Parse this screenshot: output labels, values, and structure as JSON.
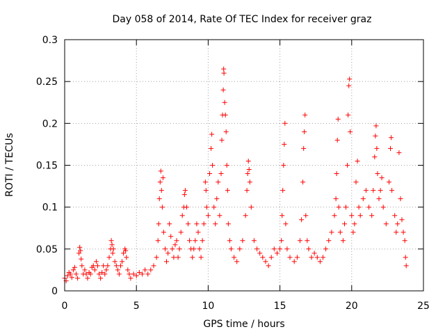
{
  "chart_data": {
    "type": "scatter",
    "title": "Day 058 of 2014, Rate Of TEC Index for receiver graz",
    "xlabel": "GPS time / hours",
    "ylabel": "ROTI / TECUs",
    "xlim": [
      0,
      25
    ],
    "ylim": [
      0,
      0.3
    ],
    "x_ticks": [
      0,
      5,
      10,
      15,
      20,
      25
    ],
    "x_tick_labels": [
      "0",
      "5",
      "10",
      "15",
      "20",
      "25"
    ],
    "y_ticks": [
      0,
      0.05,
      0.1,
      0.15,
      0.2,
      0.25,
      0.3
    ],
    "y_tick_labels": [
      "0",
      "0.05",
      "0.1",
      "0.15",
      "0.2",
      "0.25",
      "0.3"
    ],
    "grid": true,
    "marker": "+",
    "color": "#ff0000",
    "series": [
      {
        "name": "ROTI",
        "points": [
          [
            0.0,
            0.015
          ],
          [
            0.1,
            0.012
          ],
          [
            0.2,
            0.018
          ],
          [
            0.3,
            0.022
          ],
          [
            0.4,
            0.02
          ],
          [
            0.5,
            0.016
          ],
          [
            0.6,
            0.025
          ],
          [
            0.7,
            0.028
          ],
          [
            0.8,
            0.02
          ],
          [
            0.9,
            0.015
          ],
          [
            1.0,
            0.045
          ],
          [
            1.05,
            0.052
          ],
          [
            1.1,
            0.048
          ],
          [
            1.15,
            0.038
          ],
          [
            1.2,
            0.03
          ],
          [
            1.3,
            0.02
          ],
          [
            1.4,
            0.025
          ],
          [
            1.5,
            0.02
          ],
          [
            1.6,
            0.015
          ],
          [
            1.7,
            0.022
          ],
          [
            1.8,
            0.02
          ],
          [
            1.9,
            0.028
          ],
          [
            2.0,
            0.03
          ],
          [
            2.1,
            0.025
          ],
          [
            2.2,
            0.035
          ],
          [
            2.3,
            0.03
          ],
          [
            2.4,
            0.02
          ],
          [
            2.5,
            0.015
          ],
          [
            2.6,
            0.022
          ],
          [
            2.7,
            0.03
          ],
          [
            2.8,
            0.02
          ],
          [
            2.9,
            0.025
          ],
          [
            3.0,
            0.03
          ],
          [
            3.1,
            0.04
          ],
          [
            3.2,
            0.05
          ],
          [
            3.25,
            0.06
          ],
          [
            3.3,
            0.055
          ],
          [
            3.35,
            0.045
          ],
          [
            3.4,
            0.05
          ],
          [
            3.5,
            0.035
          ],
          [
            3.6,
            0.03
          ],
          [
            3.7,
            0.025
          ],
          [
            3.8,
            0.02
          ],
          [
            3.9,
            0.03
          ],
          [
            4.0,
            0.035
          ],
          [
            4.1,
            0.045
          ],
          [
            4.2,
            0.05
          ],
          [
            4.25,
            0.048
          ],
          [
            4.3,
            0.04
          ],
          [
            4.4,
            0.025
          ],
          [
            4.5,
            0.02
          ],
          [
            4.6,
            0.015
          ],
          [
            4.8,
            0.02
          ],
          [
            5.0,
            0.018
          ],
          [
            5.2,
            0.022
          ],
          [
            5.4,
            0.02
          ],
          [
            5.6,
            0.025
          ],
          [
            5.8,
            0.02
          ],
          [
            6.0,
            0.025
          ],
          [
            6.2,
            0.03
          ],
          [
            6.4,
            0.04
          ],
          [
            6.5,
            0.06
          ],
          [
            6.55,
            0.08
          ],
          [
            6.6,
            0.11
          ],
          [
            6.65,
            0.13
          ],
          [
            6.7,
            0.143
          ],
          [
            6.75,
            0.12
          ],
          [
            6.8,
            0.1
          ],
          [
            6.85,
            0.135
          ],
          [
            6.9,
            0.07
          ],
          [
            7.0,
            0.05
          ],
          [
            7.1,
            0.035
          ],
          [
            7.2,
            0.045
          ],
          [
            7.3,
            0.08
          ],
          [
            7.4,
            0.065
          ],
          [
            7.5,
            0.05
          ],
          [
            7.6,
            0.04
          ],
          [
            7.7,
            0.055
          ],
          [
            7.8,
            0.06
          ],
          [
            7.9,
            0.04
          ],
          [
            8.0,
            0.05
          ],
          [
            8.1,
            0.07
          ],
          [
            8.2,
            0.09
          ],
          [
            8.3,
            0.1
          ],
          [
            8.35,
            0.115
          ],
          [
            8.4,
            0.12
          ],
          [
            8.5,
            0.1
          ],
          [
            8.6,
            0.08
          ],
          [
            8.7,
            0.06
          ],
          [
            8.8,
            0.05
          ],
          [
            8.9,
            0.04
          ],
          [
            9.0,
            0.05
          ],
          [
            9.1,
            0.06
          ],
          [
            9.2,
            0.08
          ],
          [
            9.3,
            0.07
          ],
          [
            9.4,
            0.05
          ],
          [
            9.5,
            0.04
          ],
          [
            9.6,
            0.06
          ],
          [
            9.7,
            0.08
          ],
          [
            9.8,
            0.13
          ],
          [
            9.85,
            0.12
          ],
          [
            9.9,
            0.1
          ],
          [
            10.0,
            0.09
          ],
          [
            10.1,
            0.14
          ],
          [
            10.2,
            0.17
          ],
          [
            10.25,
            0.187
          ],
          [
            10.3,
            0.15
          ],
          [
            10.4,
            0.1
          ],
          [
            10.5,
            0.08
          ],
          [
            10.6,
            0.11
          ],
          [
            10.7,
            0.13
          ],
          [
            10.8,
            0.09
          ],
          [
            10.9,
            0.14
          ],
          [
            10.95,
            0.18
          ],
          [
            11.0,
            0.21
          ],
          [
            11.05,
            0.24
          ],
          [
            11.08,
            0.265
          ],
          [
            11.1,
            0.26
          ],
          [
            11.15,
            0.225
          ],
          [
            11.2,
            0.21
          ],
          [
            11.25,
            0.19
          ],
          [
            11.3,
            0.15
          ],
          [
            11.35,
            0.12
          ],
          [
            11.4,
            0.08
          ],
          [
            11.5,
            0.06
          ],
          [
            11.6,
            0.05
          ],
          [
            11.8,
            0.04
          ],
          [
            12.0,
            0.035
          ],
          [
            12.2,
            0.05
          ],
          [
            12.4,
            0.06
          ],
          [
            12.6,
            0.09
          ],
          [
            12.7,
            0.12
          ],
          [
            12.75,
            0.14
          ],
          [
            12.8,
            0.155
          ],
          [
            12.85,
            0.145
          ],
          [
            12.9,
            0.13
          ],
          [
            13.0,
            0.1
          ],
          [
            13.2,
            0.06
          ],
          [
            13.4,
            0.05
          ],
          [
            13.6,
            0.045
          ],
          [
            13.8,
            0.04
          ],
          [
            14.0,
            0.035
          ],
          [
            14.2,
            0.03
          ],
          [
            14.4,
            0.04
          ],
          [
            14.6,
            0.05
          ],
          [
            14.8,
            0.045
          ],
          [
            15.0,
            0.05
          ],
          [
            15.1,
            0.06
          ],
          [
            15.15,
            0.09
          ],
          [
            15.2,
            0.12
          ],
          [
            15.25,
            0.15
          ],
          [
            15.3,
            0.175
          ],
          [
            15.35,
            0.2
          ],
          [
            15.4,
            0.08
          ],
          [
            15.5,
            0.05
          ],
          [
            15.7,
            0.04
          ],
          [
            16.0,
            0.035
          ],
          [
            16.2,
            0.04
          ],
          [
            16.4,
            0.06
          ],
          [
            16.5,
            0.085
          ],
          [
            16.6,
            0.13
          ],
          [
            16.65,
            0.17
          ],
          [
            16.7,
            0.19
          ],
          [
            16.75,
            0.21
          ],
          [
            16.8,
            0.09
          ],
          [
            16.9,
            0.06
          ],
          [
            17.0,
            0.05
          ],
          [
            17.2,
            0.04
          ],
          [
            17.4,
            0.045
          ],
          [
            17.6,
            0.04
          ],
          [
            17.8,
            0.035
          ],
          [
            18.0,
            0.04
          ],
          [
            18.2,
            0.05
          ],
          [
            18.4,
            0.06
          ],
          [
            18.6,
            0.07
          ],
          [
            18.8,
            0.09
          ],
          [
            18.9,
            0.11
          ],
          [
            18.95,
            0.14
          ],
          [
            19.0,
            0.18
          ],
          [
            19.05,
            0.205
          ],
          [
            19.1,
            0.1
          ],
          [
            19.2,
            0.07
          ],
          [
            19.4,
            0.06
          ],
          [
            19.5,
            0.08
          ],
          [
            19.6,
            0.1
          ],
          [
            19.7,
            0.15
          ],
          [
            19.75,
            0.21
          ],
          [
            19.8,
            0.245
          ],
          [
            19.85,
            0.253
          ],
          [
            19.9,
            0.19
          ],
          [
            20.0,
            0.09
          ],
          [
            20.1,
            0.07
          ],
          [
            20.2,
            0.08
          ],
          [
            20.3,
            0.13
          ],
          [
            20.4,
            0.155
          ],
          [
            20.5,
            0.1
          ],
          [
            20.6,
            0.09
          ],
          [
            20.8,
            0.11
          ],
          [
            21.0,
            0.12
          ],
          [
            21.2,
            0.1
          ],
          [
            21.4,
            0.09
          ],
          [
            21.5,
            0.12
          ],
          [
            21.6,
            0.16
          ],
          [
            21.65,
            0.185
          ],
          [
            21.7,
            0.197
          ],
          [
            21.75,
            0.17
          ],
          [
            21.8,
            0.14
          ],
          [
            21.9,
            0.11
          ],
          [
            22.0,
            0.12
          ],
          [
            22.1,
            0.135
          ],
          [
            22.2,
            0.1
          ],
          [
            22.4,
            0.08
          ],
          [
            22.6,
            0.13
          ],
          [
            22.7,
            0.17
          ],
          [
            22.75,
            0.183
          ],
          [
            22.8,
            0.12
          ],
          [
            23.0,
            0.09
          ],
          [
            23.1,
            0.07
          ],
          [
            23.2,
            0.08
          ],
          [
            23.3,
            0.165
          ],
          [
            23.4,
            0.11
          ],
          [
            23.5,
            0.085
          ],
          [
            23.6,
            0.07
          ],
          [
            23.7,
            0.06
          ],
          [
            23.75,
            0.04
          ],
          [
            23.8,
            0.03
          ]
        ]
      }
    ]
  }
}
